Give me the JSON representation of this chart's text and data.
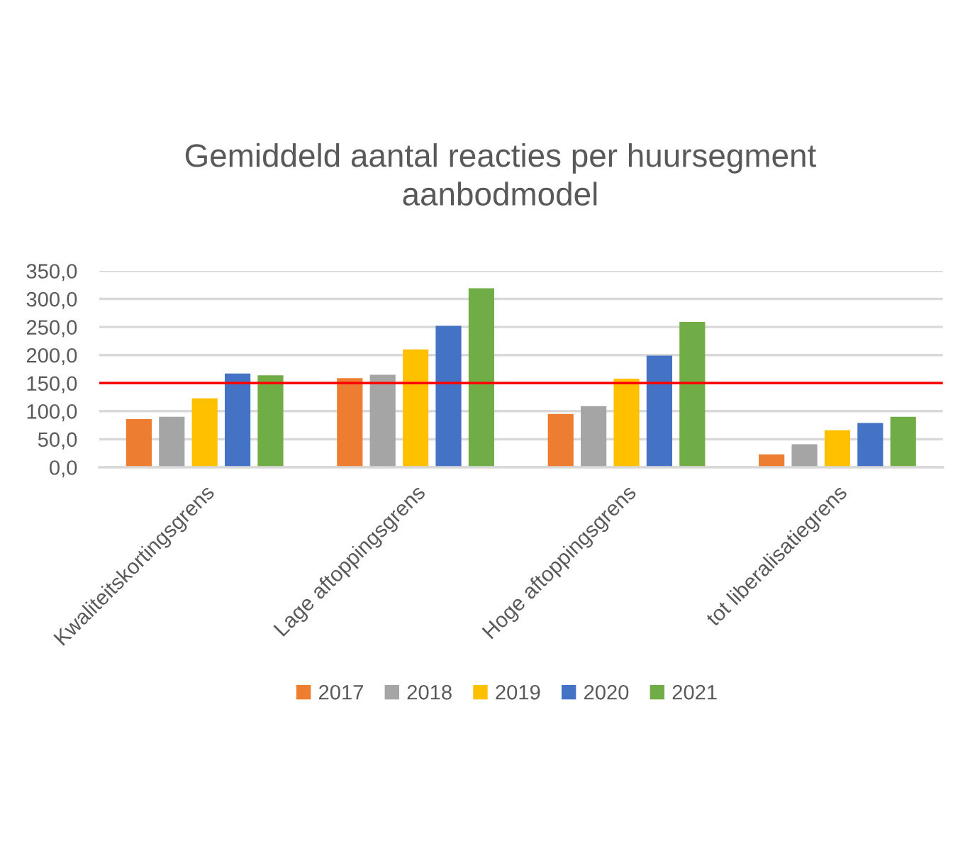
{
  "chart_data": {
    "type": "bar",
    "title": "Gemiddeld aantal reacties per huursegment\naanbodmodel",
    "categories": [
      "Kwaliteitskortingsgrens",
      "Lage aftoppingsgrens",
      "Hoge aftoppingsgrens",
      "tot liberalisatiegrens"
    ],
    "series": [
      {
        "name": "2017",
        "color": "#ed7d31",
        "values": [
          86,
          159,
          95,
          23
        ]
      },
      {
        "name": "2018",
        "color": "#a5a5a5",
        "values": [
          90,
          165,
          109,
          41
        ]
      },
      {
        "name": "2019",
        "color": "#ffc000",
        "values": [
          123,
          210,
          158,
          66
        ]
      },
      {
        "name": "2020",
        "color": "#4472c4",
        "values": [
          167,
          252,
          199,
          79
        ]
      },
      {
        "name": "2021",
        "color": "#70ad47",
        "values": [
          164,
          319,
          259,
          90
        ]
      }
    ],
    "ylim": [
      0,
      350
    ],
    "yticks": [
      {
        "value": 0,
        "label": "0,0"
      },
      {
        "value": 50,
        "label": "50,0"
      },
      {
        "value": 100,
        "label": "100,0"
      },
      {
        "value": 150,
        "label": "150,0"
      },
      {
        "value": 200,
        "label": "200,0"
      },
      {
        "value": 250,
        "label": "250,0"
      },
      {
        "value": 300,
        "label": "300,0"
      },
      {
        "value": 350,
        "label": "350,0"
      }
    ],
    "grid": "y",
    "legend": "bottom",
    "ref_lines": [
      {
        "axis": "y",
        "value": 150,
        "color": "#ff0000"
      }
    ]
  }
}
